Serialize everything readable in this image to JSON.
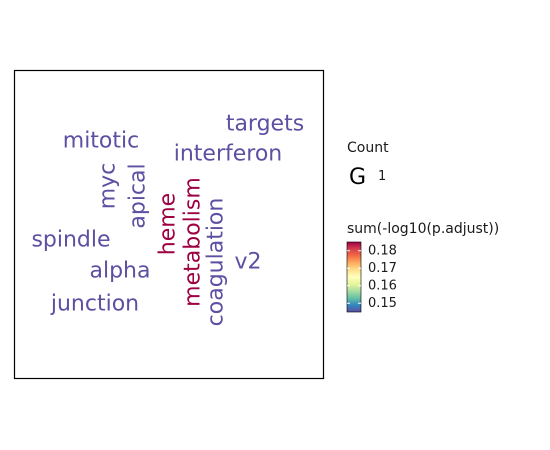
{
  "chart_data": {
    "type": "wordcloud",
    "panel": {
      "border": true,
      "background": "#ffffff"
    },
    "words": [
      {
        "text": "targets",
        "value": 0.145,
        "angle": 0
      },
      {
        "text": "mitotic",
        "value": 0.145,
        "angle": 0
      },
      {
        "text": "interferon",
        "value": 0.145,
        "angle": 0
      },
      {
        "text": "myc",
        "value": 0.145,
        "angle": -90
      },
      {
        "text": "apical",
        "value": 0.145,
        "angle": -90
      },
      {
        "text": "heme",
        "value": 0.185,
        "angle": -90
      },
      {
        "text": "metabolism",
        "value": 0.185,
        "angle": -90
      },
      {
        "text": "coagulation",
        "value": 0.145,
        "angle": -90
      },
      {
        "text": "spindle",
        "value": 0.145,
        "angle": 0
      },
      {
        "text": "v2",
        "value": 0.145,
        "angle": 0
      },
      {
        "text": "alpha",
        "value": 0.145,
        "angle": 0
      },
      {
        "text": "junction",
        "value": 0.145,
        "angle": 0
      }
    ],
    "legend_size": {
      "title": "Count",
      "glyph": "G",
      "label": "1"
    },
    "legend_color": {
      "title": "sum(-log10(p.adjust))",
      "ticks": [
        0.15,
        0.16,
        0.17,
        0.18
      ],
      "tick_labels": [
        "0.15",
        "0.16",
        "0.17",
        "0.18"
      ],
      "domain": [
        0.145,
        0.185
      ],
      "palette": "Spectral",
      "colors": [
        "#5E4FA2",
        "#3288BD",
        "#66C2A5",
        "#ABDDA4",
        "#E6F598",
        "#FFFFBF",
        "#FEE08B",
        "#FDAE61",
        "#F46D43",
        "#D53E4F",
        "#9E0142"
      ],
      "low_color": "#5E4FA2",
      "high_color": "#9E0142"
    }
  }
}
